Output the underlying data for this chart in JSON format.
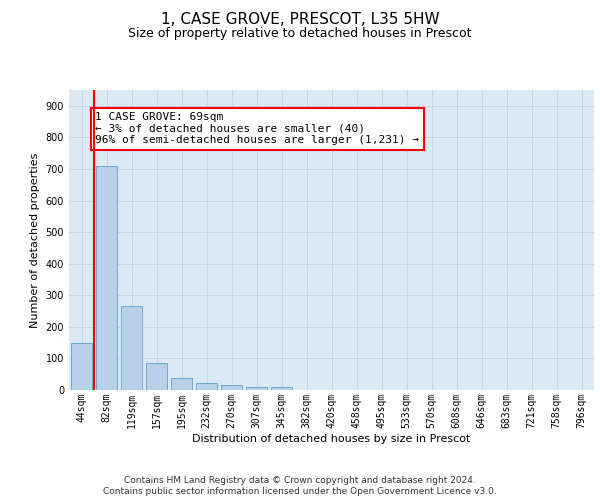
{
  "title": "1, CASE GROVE, PRESCOT, L35 5HW",
  "subtitle": "Size of property relative to detached houses in Prescot",
  "xlabel": "Distribution of detached houses by size in Prescot",
  "ylabel": "Number of detached properties",
  "categories": [
    "44sqm",
    "82sqm",
    "119sqm",
    "157sqm",
    "195sqm",
    "232sqm",
    "270sqm",
    "307sqm",
    "345sqm",
    "382sqm",
    "420sqm",
    "458sqm",
    "495sqm",
    "533sqm",
    "570sqm",
    "608sqm",
    "646sqm",
    "683sqm",
    "721sqm",
    "758sqm",
    "796sqm"
  ],
  "values": [
    150,
    710,
    265,
    85,
    38,
    22,
    15,
    10,
    10,
    0,
    0,
    0,
    0,
    0,
    0,
    0,
    0,
    0,
    0,
    0,
    0
  ],
  "bar_color": "#b8d0e8",
  "bar_edge_color": "#6aaad4",
  "grid_color": "#c8d4e4",
  "background_color": "#dce8f4",
  "annotation_text": "1 CASE GROVE: 69sqm\n← 3% of detached houses are smaller (40)\n96% of semi-detached houses are larger (1,231) →",
  "annotation_box_color": "white",
  "annotation_box_edge_color": "red",
  "vline_color": "red",
  "ylim": [
    0,
    950
  ],
  "yticks": [
    0,
    100,
    200,
    300,
    400,
    500,
    600,
    700,
    800,
    900
  ],
  "footer_line1": "Contains HM Land Registry data © Crown copyright and database right 2024.",
  "footer_line2": "Contains public sector information licensed under the Open Government Licence v3.0.",
  "title_fontsize": 11,
  "subtitle_fontsize": 9,
  "axis_label_fontsize": 8,
  "tick_fontsize": 7,
  "footer_fontsize": 6.5,
  "annotation_fontsize": 8
}
